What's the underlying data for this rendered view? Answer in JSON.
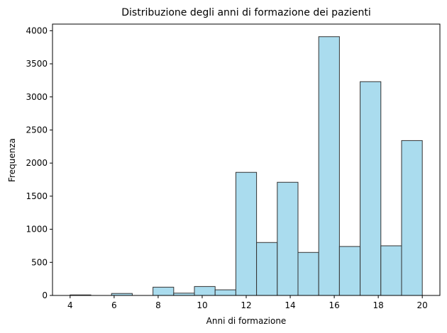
{
  "chart_data": {
    "type": "bar",
    "title": "Distribuzione degli anni di formazione dei pazienti",
    "xlabel": "Anni di formazione",
    "ylabel": "Frequenza",
    "xlim": [
      3.2,
      20.8
    ],
    "ylim": [
      0,
      4100
    ],
    "xticks": [
      4,
      6,
      8,
      10,
      12,
      14,
      16,
      18,
      20
    ],
    "yticks": [
      0,
      500,
      1000,
      1500,
      2000,
      2500,
      3000,
      3500,
      4000
    ],
    "bins": [
      {
        "x0": 4.0,
        "x1": 5.0,
        "value": 8
      },
      {
        "x0": 5.0,
        "x1": 6.0,
        "value": 0
      },
      {
        "x0": 6.0,
        "x1": 7.0,
        "value": 30
      },
      {
        "x0": 7.0,
        "x1": 8.0,
        "value": 0
      },
      {
        "x0": 8.0,
        "x1": 9.0,
        "value": 125
      },
      {
        "x0": 9.0,
        "x1": 10.0,
        "value": 35
      },
      {
        "x0": 10.0,
        "x1": 11.0,
        "value": 135
      },
      {
        "x0": 11.0,
        "x1": 12.0,
        "value": 85
      },
      {
        "x0": 12.0,
        "x1": 13.0,
        "value": 1860
      },
      {
        "x0": 13.0,
        "x1": 14.0,
        "value": 800
      },
      {
        "x0": 14.0,
        "x1": 15.0,
        "value": 1710
      },
      {
        "x0": 15.0,
        "x1": 16.0,
        "value": 650
      },
      {
        "x0": 16.0,
        "x1": 17.0,
        "value": 3910
      },
      {
        "x0": 17.0,
        "x1": 18.0,
        "value": 740
      },
      {
        "x0": 18.0,
        "x1": 19.0,
        "value": 3230
      },
      {
        "x0": 19.0,
        "x1": 20.0,
        "value": 750
      },
      {
        "x0": 20.0,
        "x1": 21.0,
        "value": 2340
      }
    ],
    "grid": false,
    "bar_color": "#aadcee",
    "edge_color": "#333333"
  }
}
